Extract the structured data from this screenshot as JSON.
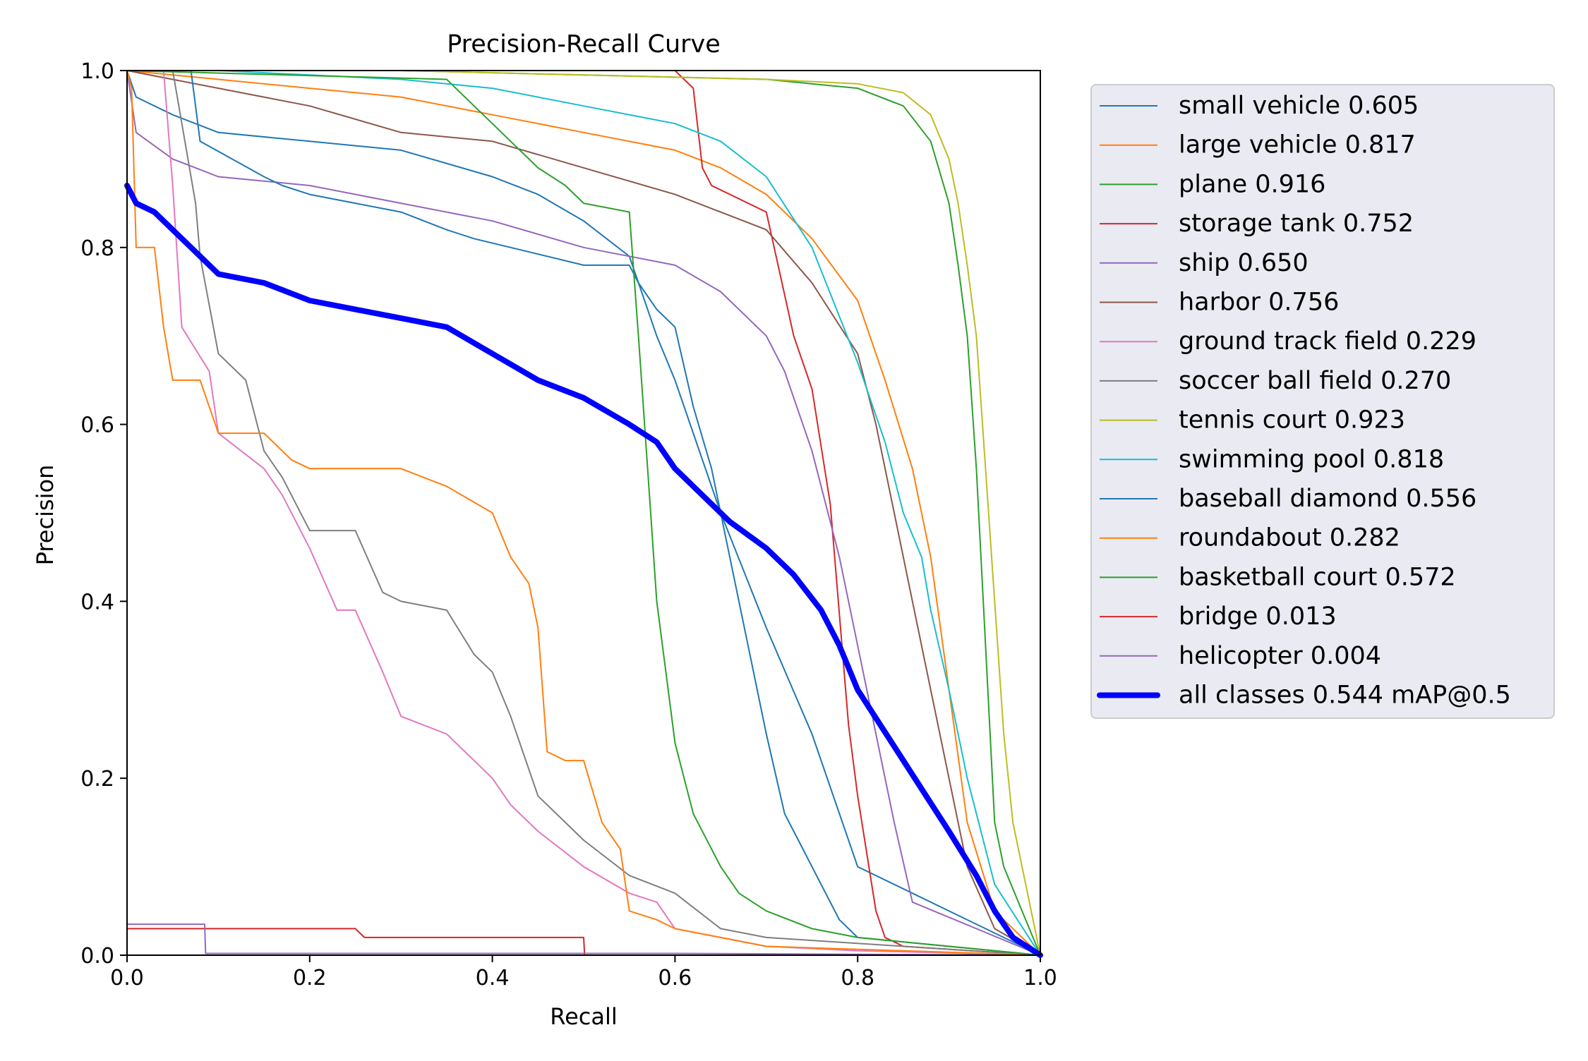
{
  "chart_data": {
    "type": "line",
    "title": "Precision-Recall Curve",
    "xlabel": "Recall",
    "ylabel": "Precision",
    "xlim": [
      0,
      1
    ],
    "ylim": [
      0,
      1
    ],
    "x_ticks": [
      0.0,
      0.2,
      0.4,
      0.6,
      0.8,
      1.0
    ],
    "y_ticks": [
      0.0,
      0.2,
      0.4,
      0.6,
      0.8,
      1.0
    ],
    "x_tick_labels": [
      "0.0",
      "0.2",
      "0.4",
      "0.6",
      "0.8",
      "1.0"
    ],
    "y_tick_labels": [
      "0.0",
      "0.2",
      "0.4",
      "0.6",
      "0.8",
      "1.0"
    ],
    "grid": false,
    "legend_position": "outside-right",
    "series": [
      {
        "name": "small vehicle 0.605",
        "color": "#1f77b4",
        "x": [
          0,
          0.01,
          0.05,
          0.1,
          0.2,
          0.3,
          0.4,
          0.45,
          0.5,
          0.55,
          0.58,
          0.6,
          0.65,
          0.7,
          0.75,
          0.8,
          1.0
        ],
        "y": [
          1.0,
          0.97,
          0.95,
          0.93,
          0.92,
          0.91,
          0.88,
          0.86,
          0.83,
          0.79,
          0.7,
          0.65,
          0.5,
          0.37,
          0.25,
          0.1,
          0.0
        ]
      },
      {
        "name": "large vehicle 0.817",
        "color": "#ff7f0e",
        "x": [
          0,
          0.1,
          0.2,
          0.3,
          0.4,
          0.5,
          0.6,
          0.65,
          0.7,
          0.75,
          0.8,
          0.83,
          0.86,
          0.88,
          0.9,
          0.92,
          0.95,
          1.0
        ],
        "y": [
          1.0,
          0.99,
          0.98,
          0.97,
          0.95,
          0.93,
          0.91,
          0.89,
          0.86,
          0.81,
          0.74,
          0.65,
          0.55,
          0.45,
          0.3,
          0.15,
          0.05,
          0.0
        ]
      },
      {
        "name": "plane 0.916",
        "color": "#2ca02c",
        "x": [
          0,
          0.1,
          0.3,
          0.5,
          0.7,
          0.8,
          0.85,
          0.88,
          0.9,
          0.91,
          0.92,
          0.93,
          0.94,
          0.95,
          0.96,
          1.0
        ],
        "y": [
          1.0,
          1.0,
          1.0,
          0.995,
          0.99,
          0.98,
          0.96,
          0.92,
          0.85,
          0.78,
          0.7,
          0.55,
          0.35,
          0.15,
          0.1,
          0.0
        ]
      },
      {
        "name": "storage tank 0.752",
        "color": "#d62728",
        "x": [
          0,
          0.05,
          0.2,
          0.4,
          0.6,
          0.62,
          0.63,
          0.64,
          0.7,
          0.73,
          0.75,
          0.77,
          0.79,
          0.8,
          0.82,
          0.83,
          0.85,
          1.0
        ],
        "y": [
          1.0,
          1.0,
          1.0,
          1.0,
          1.0,
          0.98,
          0.89,
          0.87,
          0.84,
          0.7,
          0.64,
          0.51,
          0.26,
          0.18,
          0.05,
          0.02,
          0.01,
          0.0
        ]
      },
      {
        "name": "ship 0.650",
        "color": "#9467bd",
        "x": [
          0,
          0.01,
          0.05,
          0.1,
          0.2,
          0.3,
          0.4,
          0.5,
          0.55,
          0.6,
          0.65,
          0.7,
          0.72,
          0.75,
          0.78,
          0.8,
          0.82,
          0.84,
          0.86,
          1.0
        ],
        "y": [
          1.0,
          0.93,
          0.9,
          0.88,
          0.87,
          0.85,
          0.83,
          0.8,
          0.79,
          0.78,
          0.75,
          0.7,
          0.66,
          0.57,
          0.45,
          0.35,
          0.25,
          0.15,
          0.06,
          0.0
        ]
      },
      {
        "name": "harbor 0.756",
        "color": "#8c564b",
        "x": [
          0,
          0.1,
          0.2,
          0.3,
          0.4,
          0.5,
          0.6,
          0.65,
          0.7,
          0.75,
          0.8,
          0.82,
          0.84,
          0.86,
          0.88,
          0.9,
          0.92,
          0.95,
          1.0
        ],
        "y": [
          1.0,
          0.98,
          0.96,
          0.93,
          0.92,
          0.89,
          0.86,
          0.84,
          0.82,
          0.76,
          0.68,
          0.6,
          0.5,
          0.4,
          0.3,
          0.2,
          0.1,
          0.03,
          0.0
        ]
      },
      {
        "name": "ground track field 0.229",
        "color": "#e377c2",
        "x": [
          0,
          0.04,
          0.05,
          0.06,
          0.09,
          0.1,
          0.15,
          0.17,
          0.2,
          0.23,
          0.25,
          0.28,
          0.3,
          0.35,
          0.4,
          0.42,
          0.45,
          0.5,
          0.55,
          0.58,
          0.6,
          0.65,
          0.7,
          0.8,
          1.0
        ],
        "y": [
          1.0,
          1.0,
          0.87,
          0.71,
          0.66,
          0.59,
          0.55,
          0.52,
          0.46,
          0.39,
          0.39,
          0.32,
          0.27,
          0.25,
          0.2,
          0.17,
          0.14,
          0.1,
          0.07,
          0.06,
          0.03,
          0.02,
          0.01,
          0.005,
          0.0
        ]
      },
      {
        "name": "soccer ball field 0.270",
        "color": "#7f7f7f",
        "x": [
          0,
          0.05,
          0.075,
          0.08,
          0.1,
          0.13,
          0.15,
          0.17,
          0.2,
          0.25,
          0.28,
          0.3,
          0.35,
          0.38,
          0.4,
          0.42,
          0.45,
          0.5,
          0.55,
          0.6,
          0.65,
          0.7,
          1.0
        ],
        "y": [
          1.0,
          1.0,
          0.85,
          0.79,
          0.68,
          0.65,
          0.57,
          0.54,
          0.48,
          0.48,
          0.41,
          0.4,
          0.39,
          0.34,
          0.32,
          0.27,
          0.18,
          0.13,
          0.09,
          0.07,
          0.03,
          0.02,
          0.0
        ]
      },
      {
        "name": "tennis court 0.923",
        "color": "#bcbd22",
        "x": [
          0,
          0.1,
          0.3,
          0.5,
          0.7,
          0.8,
          0.85,
          0.88,
          0.9,
          0.91,
          0.92,
          0.93,
          0.94,
          0.95,
          0.96,
          0.97,
          1.0
        ],
        "y": [
          1.0,
          1.0,
          1.0,
          0.995,
          0.99,
          0.985,
          0.975,
          0.95,
          0.9,
          0.85,
          0.78,
          0.7,
          0.55,
          0.4,
          0.25,
          0.15,
          0.0
        ]
      },
      {
        "name": "swimming pool 0.818",
        "color": "#17becf",
        "x": [
          0,
          0.1,
          0.2,
          0.3,
          0.4,
          0.5,
          0.6,
          0.65,
          0.7,
          0.75,
          0.8,
          0.83,
          0.85,
          0.87,
          0.88,
          0.9,
          0.92,
          0.95,
          1.0
        ],
        "y": [
          1.0,
          1.0,
          0.995,
          0.99,
          0.98,
          0.96,
          0.94,
          0.92,
          0.88,
          0.8,
          0.67,
          0.58,
          0.5,
          0.45,
          0.39,
          0.3,
          0.2,
          0.08,
          0.0
        ]
      },
      {
        "name": "baseball diamond 0.556",
        "color": "#1f77b4",
        "x": [
          0,
          0.07,
          0.08,
          0.15,
          0.17,
          0.2,
          0.25,
          0.3,
          0.35,
          0.38,
          0.42,
          0.46,
          0.5,
          0.52,
          0.55,
          0.56,
          0.58,
          0.6,
          0.62,
          0.64,
          0.66,
          0.68,
          0.7,
          0.72,
          0.74,
          0.76,
          0.78,
          0.8,
          1.0
        ],
        "y": [
          1.0,
          1.0,
          0.92,
          0.88,
          0.87,
          0.86,
          0.85,
          0.84,
          0.82,
          0.81,
          0.8,
          0.79,
          0.78,
          0.78,
          0.78,
          0.76,
          0.73,
          0.71,
          0.62,
          0.55,
          0.45,
          0.35,
          0.25,
          0.16,
          0.12,
          0.08,
          0.04,
          0.02,
          0.0
        ]
      },
      {
        "name": "roundabout 0.282",
        "color": "#ff7f0e",
        "x": [
          0,
          0.005,
          0.01,
          0.03,
          0.04,
          0.05,
          0.08,
          0.1,
          0.15,
          0.18,
          0.2,
          0.25,
          0.3,
          0.35,
          0.4,
          0.42,
          0.44,
          0.45,
          0.46,
          0.48,
          0.5,
          0.52,
          0.54,
          0.55,
          0.58,
          0.6,
          0.65,
          0.7,
          1.0
        ],
        "y": [
          1.0,
          0.98,
          0.8,
          0.8,
          0.71,
          0.65,
          0.65,
          0.59,
          0.59,
          0.56,
          0.55,
          0.55,
          0.55,
          0.53,
          0.5,
          0.45,
          0.42,
          0.37,
          0.23,
          0.22,
          0.22,
          0.15,
          0.12,
          0.05,
          0.04,
          0.03,
          0.02,
          0.01,
          0.0
        ]
      },
      {
        "name": "basketball court 0.572",
        "color": "#2ca02c",
        "x": [
          0,
          0.35,
          0.38,
          0.4,
          0.42,
          0.45,
          0.48,
          0.5,
          0.55,
          0.56,
          0.57,
          0.58,
          0.59,
          0.6,
          0.61,
          0.62,
          0.65,
          0.67,
          0.7,
          0.75,
          0.8,
          1.0
        ],
        "y": [
          1.0,
          0.99,
          0.96,
          0.94,
          0.92,
          0.89,
          0.87,
          0.85,
          0.84,
          0.7,
          0.55,
          0.4,
          0.32,
          0.24,
          0.2,
          0.16,
          0.1,
          0.07,
          0.05,
          0.03,
          0.02,
          0.0
        ]
      },
      {
        "name": "bridge 0.013",
        "color": "#d62728",
        "x": [
          0,
          0.1,
          0.25,
          0.26,
          0.4,
          0.5,
          0.501,
          1.0
        ],
        "y": [
          0.03,
          0.03,
          0.03,
          0.02,
          0.02,
          0.02,
          0.0,
          0.0
        ]
      },
      {
        "name": "helicopter 0.004",
        "color": "#9467bd",
        "x": [
          0,
          0.05,
          0.085,
          0.086,
          0.3,
          0.6,
          1.0
        ],
        "y": [
          0.035,
          0.035,
          0.035,
          0.002,
          0.002,
          0.002,
          0.0
        ]
      },
      {
        "name": "all classes 0.544 mAP@0.5",
        "color": "#0000ff",
        "bold": true,
        "x": [
          0,
          0.01,
          0.03,
          0.05,
          0.08,
          0.1,
          0.15,
          0.2,
          0.25,
          0.3,
          0.35,
          0.4,
          0.45,
          0.5,
          0.55,
          0.58,
          0.6,
          0.63,
          0.66,
          0.7,
          0.73,
          0.76,
          0.78,
          0.8,
          0.85,
          0.9,
          0.93,
          0.95,
          0.97,
          1.0
        ],
        "y": [
          0.87,
          0.85,
          0.84,
          0.82,
          0.79,
          0.77,
          0.76,
          0.74,
          0.73,
          0.72,
          0.71,
          0.68,
          0.65,
          0.63,
          0.6,
          0.58,
          0.55,
          0.52,
          0.49,
          0.46,
          0.43,
          0.39,
          0.35,
          0.3,
          0.22,
          0.14,
          0.09,
          0.05,
          0.02,
          0.0
        ]
      }
    ]
  }
}
